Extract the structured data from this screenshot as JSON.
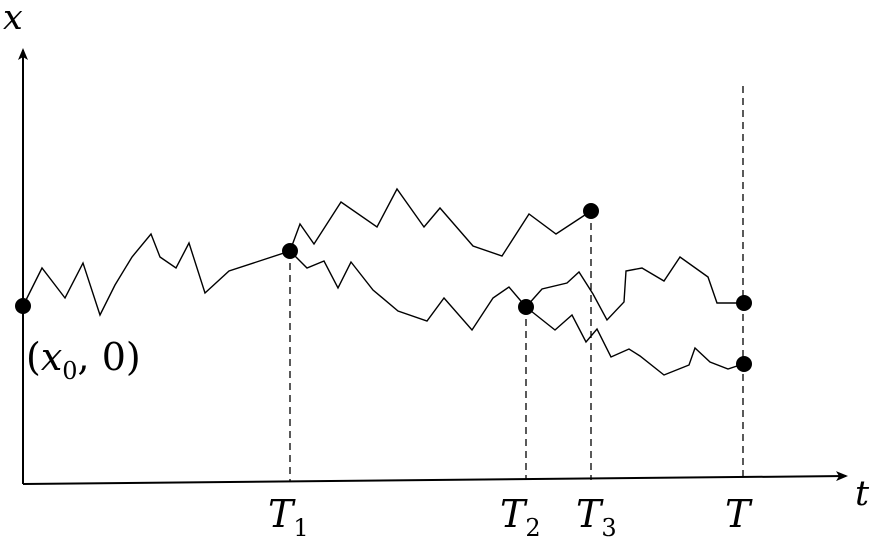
{
  "axes": {
    "x_axis_label": "t",
    "y_axis_label": "x"
  },
  "origin_label": {
    "open": "(",
    "var": "x",
    "sub": "0",
    "rest": ", 0)"
  },
  "ticks": [
    {
      "id": "T1",
      "main": "T",
      "sub": "1"
    },
    {
      "id": "T2",
      "main": "T",
      "sub": "2"
    },
    {
      "id": "T3",
      "main": "T",
      "sub": "3"
    },
    {
      "id": "T",
      "main": "T",
      "sub": ""
    }
  ],
  "colors": {
    "ink": "#000000",
    "background": "#ffffff"
  }
}
